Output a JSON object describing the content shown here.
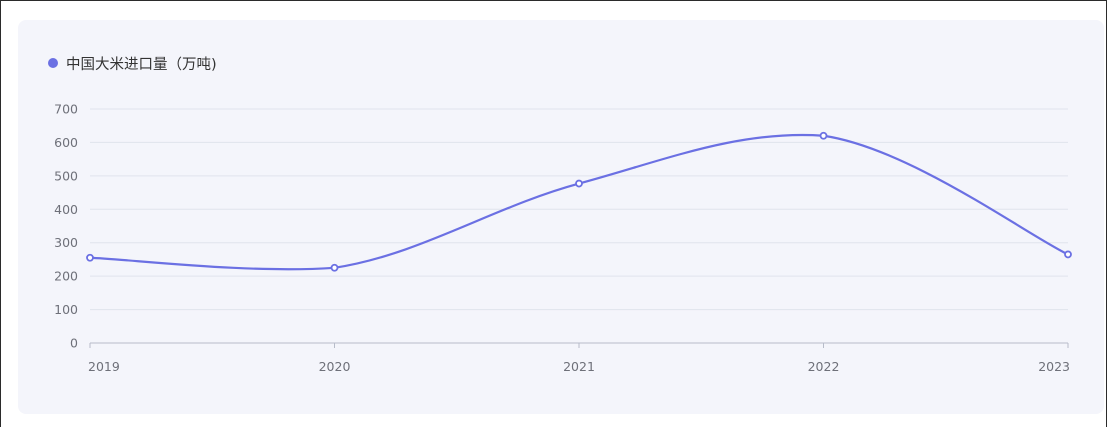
{
  "chart_data": {
    "type": "line",
    "title": "",
    "xlabel": "",
    "ylabel": "",
    "categories": [
      "2019",
      "2020",
      "2021",
      "2022",
      "2023"
    ],
    "series": [
      {
        "name": "中国大米进口量（万吨)",
        "values": [
          255,
          225,
          477,
          620,
          265
        ],
        "color": "#6b70e3"
      }
    ],
    "ylim": [
      0,
      700
    ],
    "yticks": [
      "0",
      "100",
      "200",
      "300",
      "400",
      "500",
      "600",
      "700"
    ],
    "grid": true,
    "legend_position": "top-left",
    "smooth": true,
    "colors": {
      "line": "#6b70e3",
      "grid": "#e0e3ec",
      "axis": "#b7bcc9",
      "panel": "#f4f5fb"
    }
  }
}
